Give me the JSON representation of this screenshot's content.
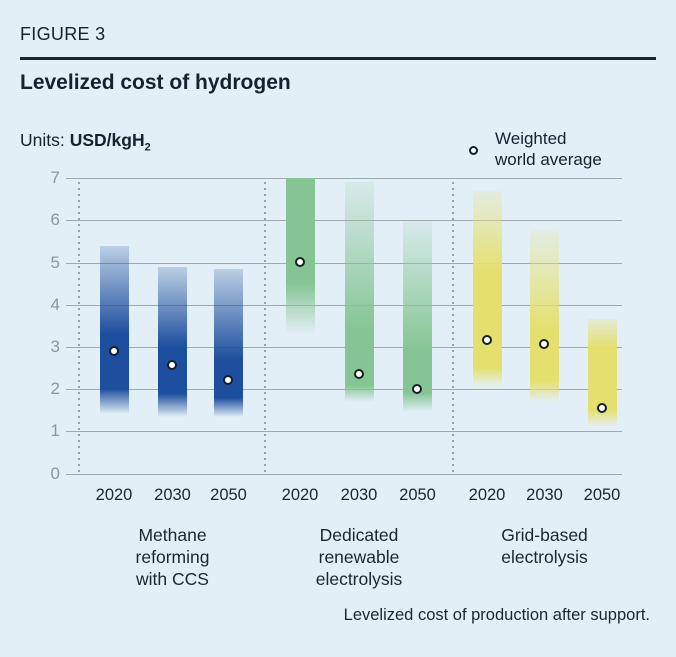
{
  "figure_label": "FIGURE 3",
  "title": "Levelized cost of hydrogen",
  "units": {
    "label": "Units:",
    "value": "USD/kgH",
    "subscript": "2"
  },
  "legend": {
    "icon": "open-circle-marker",
    "line1": "Weighted",
    "line2": "world average"
  },
  "footnote": "Levelized cost of production after support.",
  "colors": {
    "background": "#e3eff6",
    "text_dark": "#16222c",
    "axis_text": "#8b97a0",
    "gridline": "#9fa9b0",
    "separator_dots": "#96a0a8",
    "methane_blue": "#1d4f9e",
    "renewable_green": "#85c594",
    "grid_yellow": "#e5e06d",
    "marker_ring": "#151f29",
    "marker_fill": "#ffffff"
  },
  "chart_data": {
    "type": "range-bar",
    "title": "Levelized cost of hydrogen",
    "ylabel": "USD/kgH2",
    "ylim": [
      0,
      7
    ],
    "yticks": [
      0,
      1,
      2,
      3,
      4,
      5,
      6,
      7
    ],
    "grid": true,
    "legend": {
      "marker": "open-circle",
      "label": "Weighted world average",
      "position": "top-right"
    },
    "footnote": "Levelized cost of production after support.",
    "groups": [
      {
        "label": "Methane reforming with CCS",
        "label_lines": [
          "Methane",
          "reforming",
          "with CCS"
        ],
        "color": "#1d4f9e",
        "bars": [
          {
            "year": "2020",
            "range": [
              1.4,
              5.4
            ],
            "dense": [
              2.0,
              3.3
            ],
            "avg": 2.9,
            "top_alpha": 0.2
          },
          {
            "year": "2030",
            "range": [
              1.35,
              4.9
            ],
            "dense": [
              1.9,
              3.0
            ],
            "avg": 2.55,
            "top_alpha": 0.2
          },
          {
            "year": "2050",
            "range": [
              1.35,
              4.85
            ],
            "dense": [
              1.8,
              2.7
            ],
            "avg": 2.2,
            "top_alpha": 0.2
          }
        ]
      },
      {
        "label": "Dedicated renewable electrolysis",
        "label_lines": [
          "Dedicated",
          "renewable",
          "electrolysis"
        ],
        "color": "#85c594",
        "bars": [
          {
            "year": "2020",
            "range": [
              3.3,
              7.0
            ],
            "dense": [
              4.5,
              7.0
            ],
            "avg": 5.0,
            "top_alpha": 1
          },
          {
            "year": "2030",
            "range": [
              1.7,
              6.9
            ],
            "dense": [
              2.1,
              3.4
            ],
            "avg": 2.35,
            "top_alpha": 0.12
          },
          {
            "year": "2050",
            "range": [
              1.45,
              6.0
            ],
            "dense": [
              1.9,
              2.9
            ],
            "avg": 2.0,
            "top_alpha": 0.12
          }
        ]
      },
      {
        "label": "Grid-based electrolysis",
        "label_lines": [
          "Grid-based",
          "electrolysis"
        ],
        "color": "#e5e06d",
        "bars": [
          {
            "year": "2020",
            "range": [
              2.05,
              6.7
            ],
            "dense": [
              2.5,
              4.8
            ],
            "avg": 3.15,
            "top_alpha": 0.15
          },
          {
            "year": "2030",
            "range": [
              1.7,
              5.8
            ],
            "dense": [
              2.2,
              3.4
            ],
            "avg": 3.05,
            "top_alpha": 0.12
          },
          {
            "year": "2050",
            "range": [
              1.1,
              3.65
            ],
            "dense": [
              1.5,
              2.95
            ],
            "avg": 1.55,
            "top_alpha": 0.25
          }
        ]
      }
    ]
  }
}
